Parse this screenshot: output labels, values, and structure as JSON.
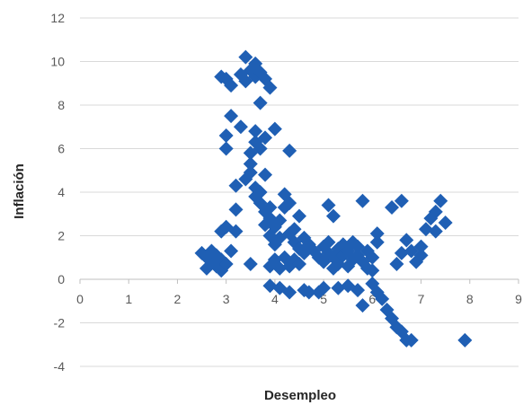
{
  "chart_data": {
    "type": "scatter",
    "title": "",
    "xlabel": "Desempleo",
    "ylabel": "Inflación",
    "xlim": [
      0,
      9
    ],
    "ylim": [
      -4,
      12
    ],
    "x_ticks": [
      "0",
      "1",
      "2",
      "3",
      "4",
      "5",
      "6",
      "7",
      "8",
      "9"
    ],
    "y_ticks": [
      "-4",
      "-2",
      "0",
      "2",
      "4",
      "6",
      "8",
      "10",
      "12"
    ],
    "grid": "horizontal",
    "marker_color": "#1f5fb4",
    "marker": "diamond",
    "series": [
      {
        "points": [
          [
            2.5,
            1.2
          ],
          [
            2.6,
            0.5
          ],
          [
            2.6,
            1.0
          ],
          [
            2.7,
            0.8
          ],
          [
            2.7,
            1.3
          ],
          [
            2.8,
            0.6
          ],
          [
            2.8,
            1.1
          ],
          [
            2.9,
            0.4
          ],
          [
            2.9,
            0.9
          ],
          [
            2.9,
            2.2
          ],
          [
            3.0,
            0.7
          ],
          [
            3.0,
            2.4
          ],
          [
            2.9,
            9.3
          ],
          [
            3.0,
            9.2
          ],
          [
            3.1,
            8.9
          ],
          [
            3.0,
            6.0
          ],
          [
            3.0,
            6.6
          ],
          [
            3.1,
            7.5
          ],
          [
            3.1,
            1.3
          ],
          [
            3.2,
            3.2
          ],
          [
            3.2,
            2.2
          ],
          [
            3.2,
            4.3
          ],
          [
            3.3,
            7.0
          ],
          [
            3.3,
            9.4
          ],
          [
            3.4,
            10.2
          ],
          [
            3.4,
            9.1
          ],
          [
            3.5,
            9.6
          ],
          [
            3.6,
            9.9
          ],
          [
            3.6,
            9.3
          ],
          [
            3.7,
            9.5
          ],
          [
            3.8,
            9.2
          ],
          [
            3.9,
            8.8
          ],
          [
            3.7,
            8.1
          ],
          [
            3.5,
            5.3
          ],
          [
            3.5,
            5.8
          ],
          [
            3.6,
            6.3
          ],
          [
            3.6,
            6.8
          ],
          [
            3.7,
            6.0
          ],
          [
            3.8,
            6.5
          ],
          [
            3.4,
            4.6
          ],
          [
            3.5,
            4.9
          ],
          [
            3.6,
            4.2
          ],
          [
            3.6,
            3.8
          ],
          [
            3.7,
            3.5
          ],
          [
            3.7,
            4.0
          ],
          [
            3.8,
            3.1
          ],
          [
            3.8,
            4.8
          ],
          [
            3.9,
            3.3
          ],
          [
            3.9,
            2.8
          ],
          [
            3.8,
            2.5
          ],
          [
            3.9,
            2.0
          ],
          [
            4.0,
            2.4
          ],
          [
            4.0,
            1.6
          ],
          [
            4.1,
            1.9
          ],
          [
            4.1,
            2.7
          ],
          [
            4.2,
            3.3
          ],
          [
            4.2,
            3.9
          ],
          [
            4.3,
            3.5
          ],
          [
            4.3,
            2.1
          ],
          [
            4.4,
            2.3
          ],
          [
            4.4,
            1.7
          ],
          [
            4.5,
            2.9
          ],
          [
            4.5,
            1.4
          ],
          [
            4.6,
            1.9
          ],
          [
            4.6,
            1.2
          ],
          [
            4.0,
            6.9
          ],
          [
            4.3,
            5.9
          ],
          [
            3.5,
            0.7
          ],
          [
            3.9,
            0.6
          ],
          [
            4.0,
            0.9
          ],
          [
            4.1,
            0.5
          ],
          [
            4.2,
            1.0
          ],
          [
            4.3,
            0.6
          ],
          [
            4.4,
            0.9
          ],
          [
            4.5,
            0.7
          ],
          [
            3.9,
            -0.3
          ],
          [
            4.1,
            -0.4
          ],
          [
            4.3,
            -0.6
          ],
          [
            4.6,
            -0.5
          ],
          [
            4.7,
            -0.6
          ],
          [
            4.9,
            -0.6
          ],
          [
            5.0,
            -0.4
          ],
          [
            4.7,
            1.6
          ],
          [
            4.8,
            1.3
          ],
          [
            4.9,
            1.0
          ],
          [
            5.0,
            1.5
          ],
          [
            5.0,
            0.8
          ],
          [
            5.1,
            1.2
          ],
          [
            5.1,
            1.7
          ],
          [
            5.1,
            3.4
          ],
          [
            5.2,
            2.9
          ],
          [
            5.2,
            0.5
          ],
          [
            5.2,
            1.0
          ],
          [
            5.3,
            1.4
          ],
          [
            5.3,
            0.7
          ],
          [
            5.4,
            1.6
          ],
          [
            5.4,
            1.1
          ],
          [
            5.5,
            0.6
          ],
          [
            5.5,
            1.3
          ],
          [
            5.6,
            1.7
          ],
          [
            5.6,
            0.9
          ],
          [
            5.7,
            1.1
          ],
          [
            5.7,
            1.5
          ],
          [
            5.8,
            3.6
          ],
          [
            5.8,
            0.8
          ],
          [
            5.9,
            1.3
          ],
          [
            5.9,
            0.5
          ],
          [
            6.0,
            1.0
          ],
          [
            6.0,
            0.4
          ],
          [
            6.1,
            1.7
          ],
          [
            6.1,
            2.1
          ],
          [
            5.3,
            -0.4
          ],
          [
            5.5,
            -0.3
          ],
          [
            5.7,
            -0.5
          ],
          [
            5.8,
            -1.2
          ],
          [
            6.0,
            -0.2
          ],
          [
            6.1,
            -0.6
          ],
          [
            6.2,
            -0.9
          ],
          [
            6.3,
            -1.4
          ],
          [
            6.4,
            -1.8
          ],
          [
            6.5,
            -2.2
          ],
          [
            6.6,
            -2.4
          ],
          [
            6.7,
            -2.8
          ],
          [
            6.8,
            -2.8
          ],
          [
            6.4,
            3.3
          ],
          [
            6.5,
            0.7
          ],
          [
            6.6,
            1.2
          ],
          [
            6.6,
            3.6
          ],
          [
            6.7,
            1.8
          ],
          [
            6.8,
            1.3
          ],
          [
            6.9,
            0.8
          ],
          [
            7.0,
            1.1
          ],
          [
            7.0,
            1.5
          ],
          [
            7.1,
            2.3
          ],
          [
            7.2,
            2.8
          ],
          [
            7.3,
            3.1
          ],
          [
            7.3,
            2.2
          ],
          [
            7.4,
            3.6
          ],
          [
            7.5,
            2.6
          ],
          [
            7.9,
            -2.8
          ]
        ]
      }
    ]
  }
}
